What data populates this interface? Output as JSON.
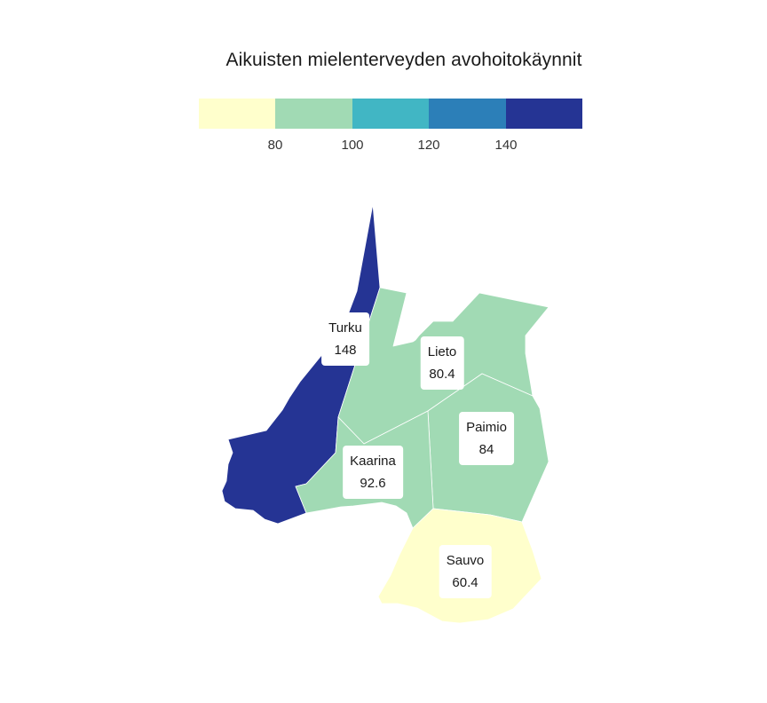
{
  "title": "Aikuisten mielenterveyden avohoitokäynnit",
  "legend": {
    "colors": [
      "#ffffcc",
      "#a1dab4",
      "#41b6c4",
      "#2c7fb8",
      "#253494"
    ],
    "ticks": [
      "80",
      "100",
      "120",
      "140"
    ]
  },
  "regions": [
    {
      "name": "Turku",
      "value": "148",
      "color": "#253494"
    },
    {
      "name": "Lieto",
      "value": "80.4",
      "color": "#a1dab4"
    },
    {
      "name": "Paimio",
      "value": "84",
      "color": "#a1dab4"
    },
    {
      "name": "Kaarina",
      "value": "92.6",
      "color": "#a1dab4"
    },
    {
      "name": "Sauvo",
      "value": "60.4",
      "color": "#ffffcc"
    }
  ]
}
